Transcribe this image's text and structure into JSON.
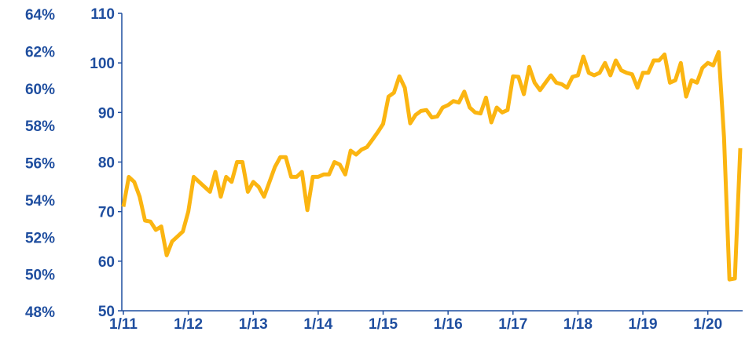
{
  "chart_data": {
    "type": "line",
    "x": [
      "2011-01",
      "2011-02",
      "2011-03",
      "2011-04",
      "2011-05",
      "2011-06",
      "2011-07",
      "2011-08",
      "2011-09",
      "2011-10",
      "2011-11",
      "2011-12",
      "2012-01",
      "2012-02",
      "2012-03",
      "2012-04",
      "2012-05",
      "2012-06",
      "2012-07",
      "2012-08",
      "2012-09",
      "2012-10",
      "2012-11",
      "2012-12",
      "2013-01",
      "2013-02",
      "2013-03",
      "2013-04",
      "2013-05",
      "2013-06",
      "2013-07",
      "2013-08",
      "2013-09",
      "2013-10",
      "2013-11",
      "2013-12",
      "2014-01",
      "2014-02",
      "2014-03",
      "2014-04",
      "2014-05",
      "2014-06",
      "2014-07",
      "2014-08",
      "2014-09",
      "2014-10",
      "2014-11",
      "2014-12",
      "2015-01",
      "2015-02",
      "2015-03",
      "2015-04",
      "2015-05",
      "2015-06",
      "2015-07",
      "2015-08",
      "2015-09",
      "2015-10",
      "2015-11",
      "2015-12",
      "2016-01",
      "2016-02",
      "2016-03",
      "2016-04",
      "2016-05",
      "2016-06",
      "2016-07",
      "2016-08",
      "2016-09",
      "2016-10",
      "2016-11",
      "2016-12",
      "2017-01",
      "2017-02",
      "2017-03",
      "2017-04",
      "2017-05",
      "2017-06",
      "2017-07",
      "2017-08",
      "2017-09",
      "2017-10",
      "2017-11",
      "2017-12",
      "2018-01",
      "2018-02",
      "2018-03",
      "2018-04",
      "2018-05",
      "2018-06",
      "2018-07",
      "2018-08",
      "2018-09",
      "2018-10",
      "2018-11",
      "2018-12",
      "2019-01",
      "2019-02",
      "2019-03",
      "2019-04",
      "2019-05",
      "2019-06",
      "2019-07",
      "2019-08",
      "2019-09",
      "2019-10",
      "2019-11",
      "2019-12",
      "2020-01",
      "2020-02",
      "2020-03",
      "2020-04",
      "2020-05",
      "2020-06",
      "2020-07"
    ],
    "series": [
      {
        "color": "#fbb511",
        "axis": "y2",
        "values": [
          71,
          77,
          76,
          73,
          68.2,
          68,
          66.3,
          67,
          61.2,
          64,
          65,
          66,
          70,
          77,
          76,
          75,
          74,
          78,
          73,
          77,
          76,
          80,
          80,
          74,
          76,
          75,
          73,
          76,
          79,
          81,
          81,
          77,
          77,
          78,
          70.3,
          77,
          77,
          77.5,
          77.5,
          80,
          79.5,
          77.5,
          82.3,
          81.5,
          82.5,
          83,
          84.5,
          86,
          87.7,
          93.2,
          94,
          97.3,
          95,
          87.8,
          89.5,
          90.3,
          90.5,
          89,
          89.2,
          91,
          91.5,
          92.3,
          92,
          94.2,
          91,
          90,
          89.8,
          93,
          88,
          91,
          90,
          90.5,
          97.3,
          97.2,
          93.7,
          99.2,
          96,
          94.5,
          96,
          97.5,
          96,
          95.7,
          95,
          97.2,
          97.5,
          101.3,
          98,
          97.5,
          98,
          100,
          97.5,
          100.5,
          98.5,
          98,
          97.7,
          95,
          98,
          98,
          100.5,
          100.5,
          101.7,
          96,
          96.5,
          100,
          93.2,
          96.5,
          96,
          99,
          100,
          99.5,
          102.2,
          85,
          56.3,
          56.5,
          82.8
        ]
      }
    ],
    "xlim": [
      "2011-01",
      "2020-07"
    ],
    "xticks": [
      {
        "value": "2011-01",
        "label": "1/11"
      },
      {
        "value": "2012-01",
        "label": "1/12"
      },
      {
        "value": "2013-01",
        "label": "1/13"
      },
      {
        "value": "2014-01",
        "label": "1/14"
      },
      {
        "value": "2015-01",
        "label": "1/15"
      },
      {
        "value": "2016-01",
        "label": "1/16"
      },
      {
        "value": "2017-01",
        "label": "1/17"
      },
      {
        "value": "2018-01",
        "label": "1/18"
      },
      {
        "value": "2019-01",
        "label": "1/19"
      },
      {
        "value": "2020-01",
        "label": "1/20"
      }
    ],
    "ylim": [
      48,
      64
    ],
    "yticks": [
      {
        "value": 48,
        "label": "48%"
      },
      {
        "value": 50,
        "label": "50%"
      },
      {
        "value": 52,
        "label": "52%"
      },
      {
        "value": 54,
        "label": "54%"
      },
      {
        "value": 56,
        "label": "56%"
      },
      {
        "value": 58,
        "label": "58%"
      },
      {
        "value": 60,
        "label": "60%"
      },
      {
        "value": 62,
        "label": "62%"
      },
      {
        "value": 64,
        "label": "64%"
      }
    ],
    "y2lim": [
      50,
      110
    ],
    "y2ticks": [
      50,
      60,
      70,
      80,
      90,
      100,
      110
    ],
    "grid": false
  }
}
